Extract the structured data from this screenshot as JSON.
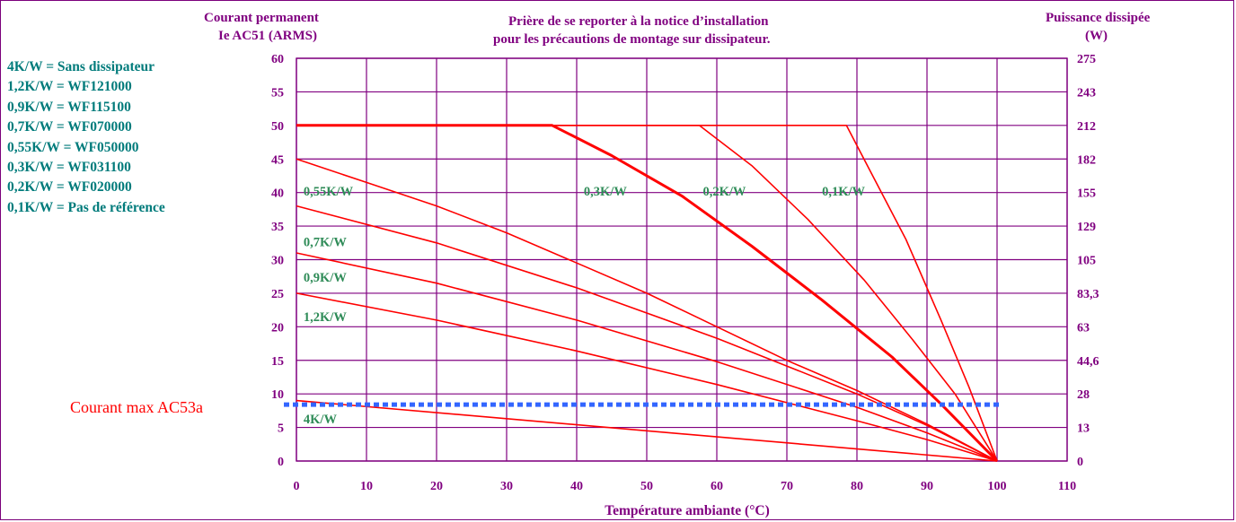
{
  "header": {
    "left_line1": "Courant permanent",
    "left_line2": "Ie AC51 (ARMS)",
    "center_line1": "Prière de se reporter à la notice d’installation",
    "center_line2": "pour les précautions de montage sur dissipateur.",
    "right_line1": "Puissance dissipée",
    "right_line2": "(W)"
  },
  "legend_list": [
    "4K/W = Sans dissipateur",
    "1,2K/W = WF121000",
    "0,9K/W = WF115100",
    "0,7K/W = WF070000",
    "0,55K/W = WF050000",
    "0,3K/W = WF031100",
    "0,2K/W = WF020000",
    "0,1K/W = Pas de référence"
  ],
  "max_current_label": "Courant max AC53a",
  "colors": {
    "grid": "#800080",
    "curves": "#ff0000",
    "dashed": "#3366ff",
    "labels": "#2e8b57",
    "axis_text": "#800080",
    "legend_text": "#007b7b",
    "max_label": "#ff0000"
  },
  "chart_data": {
    "type": "line",
    "xlabel": "Température ambiante (°C)",
    "ylabel": "Courant permanent Ie AC51 (ARMS)",
    "y2label": "Puissance dissipée (W)",
    "xlim": [
      0,
      110
    ],
    "ylim": [
      0,
      60
    ],
    "x_ticks": [
      "0",
      "10",
      "20",
      "30",
      "40",
      "50",
      "60",
      "70",
      "80",
      "90",
      "100",
      "110"
    ],
    "y_ticks": [
      "0",
      "5",
      "10",
      "15",
      "20",
      "25",
      "30",
      "35",
      "40",
      "45",
      "50",
      "55",
      "60"
    ],
    "y2_ticks": [
      "0",
      "13",
      "28",
      "44,6",
      "63",
      "83,3",
      "105",
      "129",
      "155",
      "182",
      "212",
      "243",
      "275"
    ],
    "grid": true,
    "series": [
      {
        "name": "4K/W",
        "x": [
          0,
          100
        ],
        "y": [
          9,
          0
        ],
        "bold": false
      },
      {
        "name": "1,2K/W",
        "x": [
          0,
          20,
          40,
          60,
          80,
          90,
          100
        ],
        "y": [
          25,
          21,
          16.4,
          11.4,
          6,
          3.2,
          0
        ],
        "bold": false
      },
      {
        "name": "0,9K/W",
        "x": [
          0,
          20,
          40,
          60,
          80,
          90,
          100
        ],
        "y": [
          31,
          26.5,
          21,
          14.8,
          8,
          4.2,
          0
        ],
        "bold": false
      },
      {
        "name": "0,7K/W",
        "x": [
          0,
          20,
          40,
          60,
          80,
          90,
          100
        ],
        "y": [
          38,
          32.5,
          25.8,
          18.3,
          10,
          5.3,
          0
        ],
        "bold": false
      },
      {
        "name": "0,55K/W",
        "x": [
          0,
          10,
          20,
          30,
          40,
          50,
          60,
          70,
          80,
          90,
          100
        ],
        "y": [
          45,
          41.5,
          38,
          34,
          29.5,
          25,
          20,
          15,
          10.5,
          5.5,
          0
        ],
        "bold": false
      },
      {
        "name": "0,3K/W",
        "x": [
          0,
          36.5,
          45,
          55,
          65,
          75,
          85,
          92,
          100
        ],
        "y": [
          50,
          50,
          45.5,
          39.5,
          32,
          24,
          15.5,
          8.5,
          0
        ],
        "bold": true
      },
      {
        "name": "0,2K/W",
        "x": [
          0,
          57.5,
          65,
          73,
          81,
          88,
          94,
          100
        ],
        "y": [
          50,
          50,
          44,
          36,
          27,
          18,
          10,
          0
        ],
        "bold": false
      },
      {
        "name": "0,1K/W",
        "x": [
          0,
          78.5,
          82,
          87,
          92,
          96,
          100
        ],
        "y": [
          50,
          50,
          43,
          33,
          21,
          11,
          0
        ],
        "bold": false
      }
    ],
    "curve_labels": [
      {
        "text": "0,55K/W",
        "x": 0.5,
        "y": 40.2
      },
      {
        "text": "0,3K/W",
        "x": 40.5,
        "y": 40.2
      },
      {
        "text": "0,2K/W",
        "x": 57.5,
        "y": 40.2
      },
      {
        "text": "0,1K/W",
        "x": 74.5,
        "y": 40.2
      },
      {
        "text": "0,7K/W",
        "x": 0.5,
        "y": 32.7
      },
      {
        "text": "0,9K/W",
        "x": 0.5,
        "y": 27.4
      },
      {
        "text": "1,2K/W",
        "x": 0.5,
        "y": 21.5
      },
      {
        "text": "4K/W",
        "x": 0.5,
        "y": 6.3
      }
    ],
    "ac53a_max_current": 8.4
  }
}
